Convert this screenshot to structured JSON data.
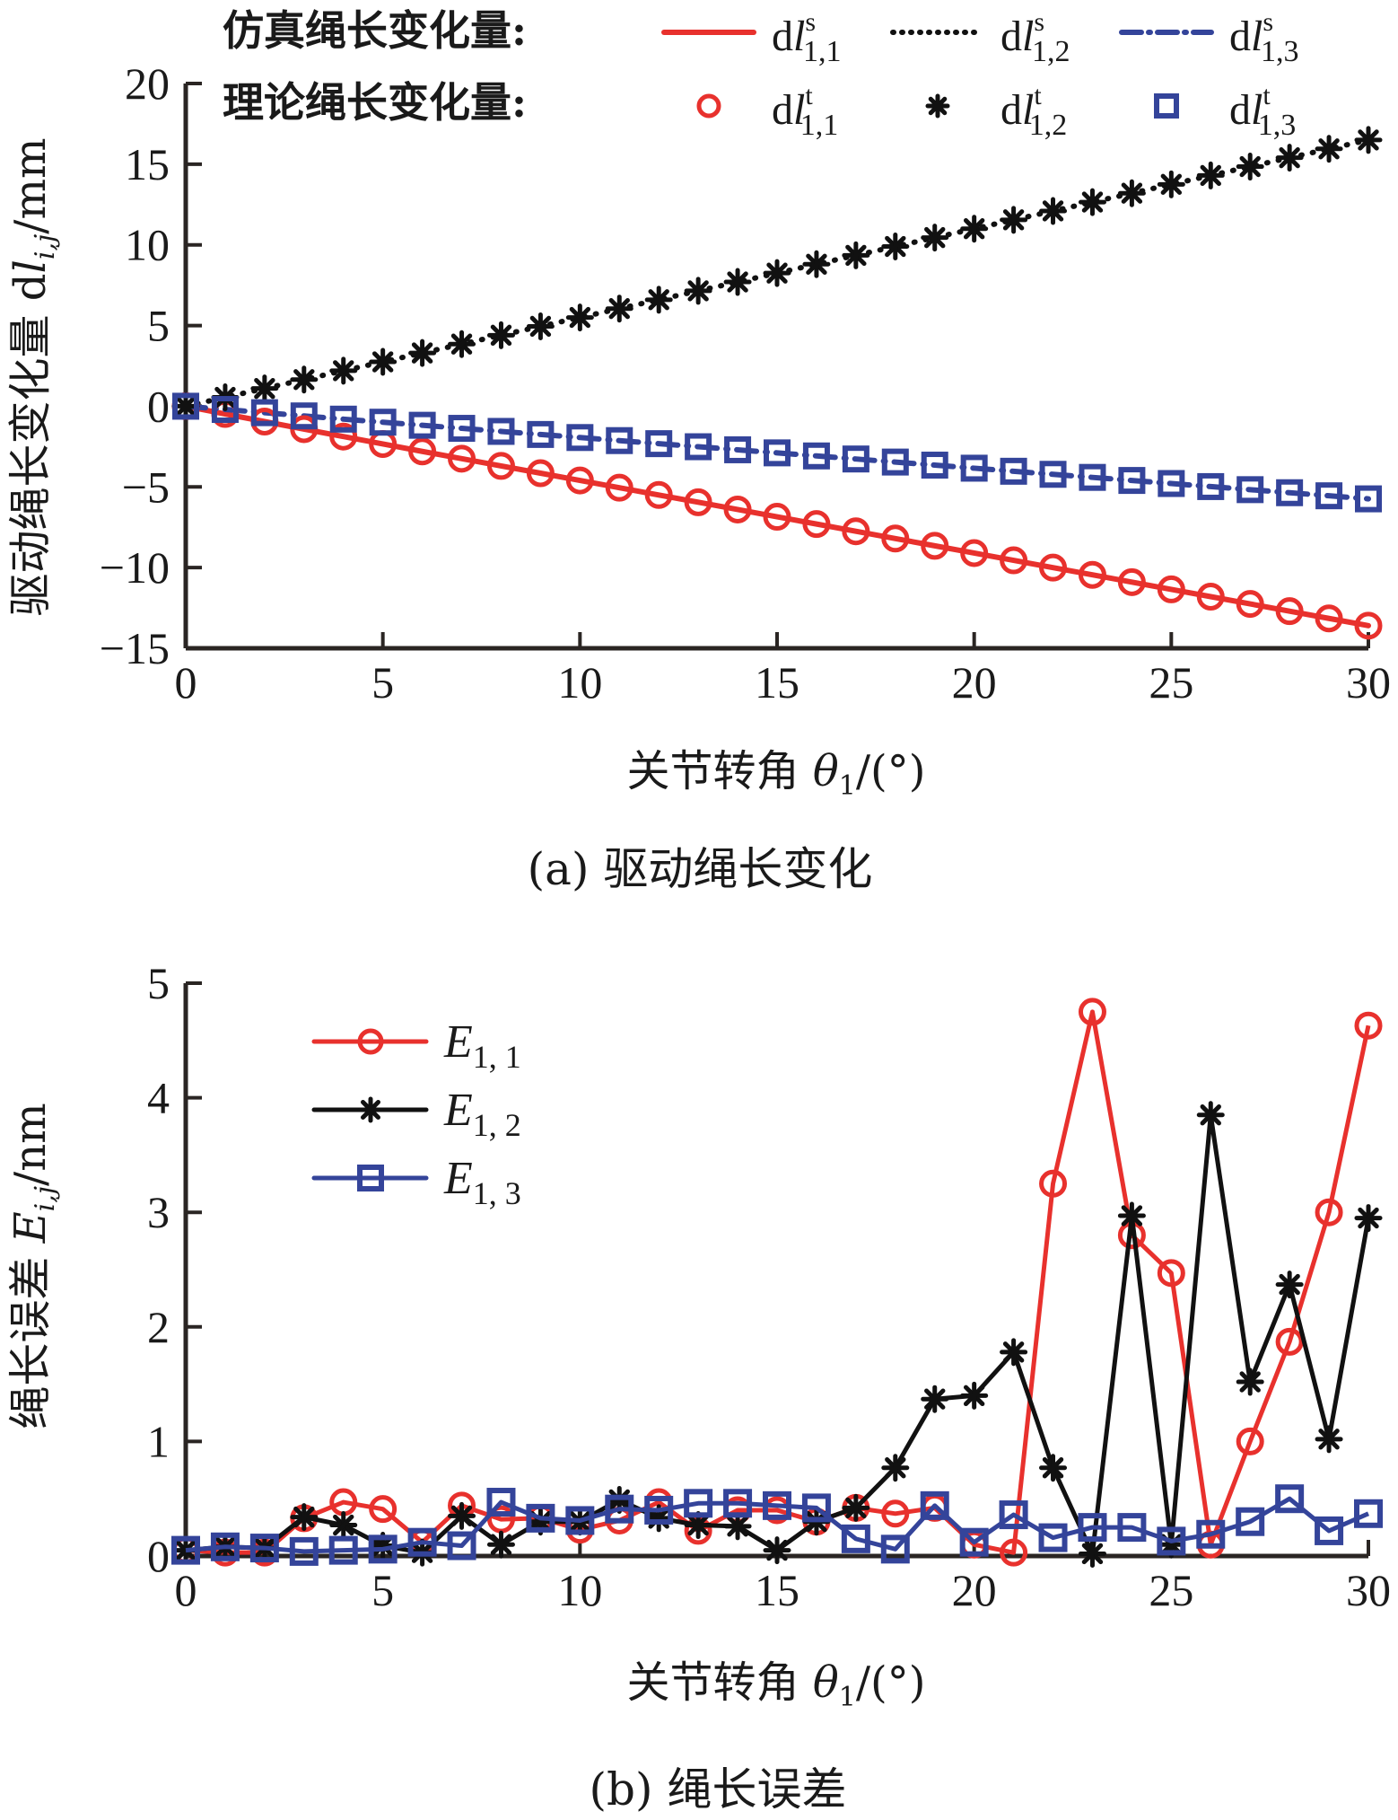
{
  "chart_data": [
    {
      "type": "line",
      "caption": "(a) 驱动绳长变化",
      "xlabel": "关节转角 θ1/(°)",
      "ylabel": "驱动绳长变化量 dl_ij/mm",
      "xlim": [
        0,
        30
      ],
      "ylim": [
        -15,
        20
      ],
      "xticks": [
        "0",
        "5",
        "10",
        "15",
        "20",
        "25",
        "30"
      ],
      "yticks": [
        "20",
        "15",
        "10",
        "5",
        "0",
        "−5",
        "−10",
        "−15"
      ],
      "grid": false,
      "legend": {
        "placement": "top",
        "row_labels": [
          "仿真绳长变化量:",
          "理论绳长变化量:"
        ],
        "entries": [
          {
            "group": "simulated",
            "label": "dl s 1,1",
            "base": "dl",
            "sup": "s",
            "sub": "1,1",
            "style": "solid",
            "color": "#e8312d"
          },
          {
            "group": "simulated",
            "label": "dl s 1,2",
            "base": "dl",
            "sup": "s",
            "sub": "1,2",
            "style": "dotted",
            "color": "#111111"
          },
          {
            "group": "simulated",
            "label": "dl s 1,3",
            "base": "dl",
            "sup": "s",
            "sub": "1,3",
            "style": "dash-dot",
            "color": "#34449a"
          },
          {
            "group": "theoretical",
            "label": "dl t 1,1",
            "base": "dl",
            "sup": "t",
            "sub": "1,1",
            "marker": "circle",
            "color": "#e8312d"
          },
          {
            "group": "theoretical",
            "label": "dl t 1,2",
            "base": "dl",
            "sup": "t",
            "sub": "1,2",
            "marker": "asterisk",
            "color": "#111111"
          },
          {
            "group": "theoretical",
            "label": "dl t 1,3",
            "base": "dl",
            "sup": "t",
            "sub": "1,3",
            "marker": "square",
            "color": "#34449a"
          }
        ]
      },
      "x": [
        0,
        1,
        2,
        3,
        4,
        5,
        6,
        7,
        8,
        9,
        10,
        11,
        12,
        13,
        14,
        15,
        16,
        17,
        18,
        19,
        20,
        21,
        22,
        23,
        24,
        25,
        26,
        27,
        28,
        29,
        30
      ],
      "series": [
        {
          "name": "dl_1,1",
          "color": "#e8312d",
          "marker": "circle",
          "line": "solid",
          "values": [
            0,
            -0.48,
            -0.95,
            -1.42,
            -1.88,
            -2.34,
            -2.8,
            -3.25,
            -3.7,
            -4.15,
            -4.6,
            -5.05,
            -5.5,
            -5.95,
            -6.4,
            -6.85,
            -7.3,
            -7.75,
            -8.2,
            -8.65,
            -9.1,
            -9.55,
            -10.0,
            -10.45,
            -10.9,
            -11.35,
            -11.8,
            -12.25,
            -12.7,
            -13.15,
            -13.6
          ]
        },
        {
          "name": "dl_1,2",
          "color": "#111111",
          "marker": "asterisk",
          "line": "dotted",
          "values": [
            0,
            0.55,
            1.1,
            1.65,
            2.2,
            2.75,
            3.3,
            3.85,
            4.4,
            4.95,
            5.5,
            6.05,
            6.6,
            7.15,
            7.7,
            8.25,
            8.8,
            9.35,
            9.9,
            10.45,
            11.0,
            11.55,
            12.1,
            12.65,
            13.2,
            13.75,
            14.3,
            14.85,
            15.4,
            15.95,
            16.5
          ]
        },
        {
          "name": "dl_1,3",
          "color": "#34449a",
          "marker": "square",
          "line": "dash-dot",
          "values": [
            0,
            -0.2,
            -0.4,
            -0.6,
            -0.8,
            -0.99,
            -1.18,
            -1.37,
            -1.56,
            -1.75,
            -1.94,
            -2.13,
            -2.32,
            -2.51,
            -2.7,
            -2.89,
            -3.08,
            -3.27,
            -3.46,
            -3.65,
            -3.84,
            -4.03,
            -4.22,
            -4.41,
            -4.6,
            -4.79,
            -4.98,
            -5.17,
            -5.36,
            -5.55,
            -5.74
          ]
        }
      ]
    },
    {
      "type": "line",
      "caption": "(b) 绳长误差",
      "xlabel": "关节转角 θ1/(°)",
      "ylabel": "绳长误差 E_ij/nm",
      "xlim": [
        0,
        30
      ],
      "ylim": [
        0,
        5
      ],
      "xticks": [
        "0",
        "5",
        "10",
        "15",
        "20",
        "25",
        "30"
      ],
      "yticks": [
        "5",
        "4",
        "3",
        "2",
        "1",
        "0"
      ],
      "grid": false,
      "legend": {
        "placement": "top-left",
        "entries": [
          {
            "label": "E 1, 1",
            "base": "E",
            "sub": "1, 1",
            "marker": "circle",
            "color": "#e8312d"
          },
          {
            "label": "E 1, 2",
            "base": "E",
            "sub": "1, 2",
            "marker": "asterisk",
            "color": "#111111"
          },
          {
            "label": "E 1, 3",
            "base": "E",
            "sub": "1, 3",
            "marker": "square",
            "color": "#34449a"
          }
        ]
      },
      "x": [
        0,
        1,
        2,
        3,
        4,
        5,
        6,
        7,
        8,
        9,
        10,
        11,
        12,
        13,
        14,
        15,
        16,
        17,
        18,
        19,
        20,
        21,
        22,
        23,
        24,
        25,
        26,
        27,
        28,
        29,
        30
      ],
      "series": [
        {
          "name": "E_1,1",
          "color": "#e8312d",
          "marker": "circle",
          "values": [
            0.05,
            0.03,
            0.03,
            0.33,
            0.47,
            0.41,
            0.12,
            0.44,
            0.32,
            0.33,
            0.23,
            0.31,
            0.47,
            0.22,
            0.4,
            0.4,
            0.3,
            0.42,
            0.37,
            0.42,
            0.1,
            0.03,
            3.25,
            4.75,
            2.8,
            2.47,
            0.1,
            1.0,
            1.87,
            3.0,
            4.63
          ]
        },
        {
          "name": "E_1,2",
          "color": "#111111",
          "marker": "asterisk",
          "values": [
            0.05,
            0.08,
            0.07,
            0.34,
            0.27,
            0.09,
            0.03,
            0.35,
            0.1,
            0.3,
            0.3,
            0.49,
            0.33,
            0.27,
            0.26,
            0.05,
            0.3,
            0.42,
            0.77,
            1.37,
            1.4,
            1.78,
            0.77,
            0.02,
            2.97,
            0.1,
            3.85,
            1.52,
            2.37,
            1.02,
            2.95
          ]
        },
        {
          "name": "E_1,3",
          "color": "#34449a",
          "marker": "square",
          "values": [
            0.05,
            0.08,
            0.07,
            0.04,
            0.05,
            0.06,
            0.12,
            0.09,
            0.47,
            0.33,
            0.31,
            0.41,
            0.4,
            0.46,
            0.46,
            0.44,
            0.42,
            0.15,
            0.06,
            0.44,
            0.12,
            0.36,
            0.16,
            0.25,
            0.25,
            0.13,
            0.19,
            0.3,
            0.5,
            0.22,
            0.37
          ]
        }
      ]
    }
  ],
  "labels": {
    "a": {
      "row1": "仿真绳长变化量:",
      "row2": "理论绳长变化量:",
      "ylabel_cn": "驱动绳长变化量 d",
      "ylabel_var": "l",
      "ylabel_sub": "i,j",
      "ylabel_unit": "/mm",
      "xlabel_cn": "关节转角 ",
      "xlabel_var": "θ",
      "xlabel_sub": "1",
      "xlabel_unit": "/(°)",
      "caption": "(a) 驱动绳长变化"
    },
    "b": {
      "ylabel_cn": "绳长误差 ",
      "ylabel_var": "E",
      "ylabel_sub": "i,j",
      "ylabel_unit": "/nm",
      "xlabel_cn": "关节转角 ",
      "xlabel_var": "θ",
      "xlabel_sub": "1",
      "xlabel_unit": "/(°)",
      "caption": "(b) 绳长误差"
    }
  }
}
